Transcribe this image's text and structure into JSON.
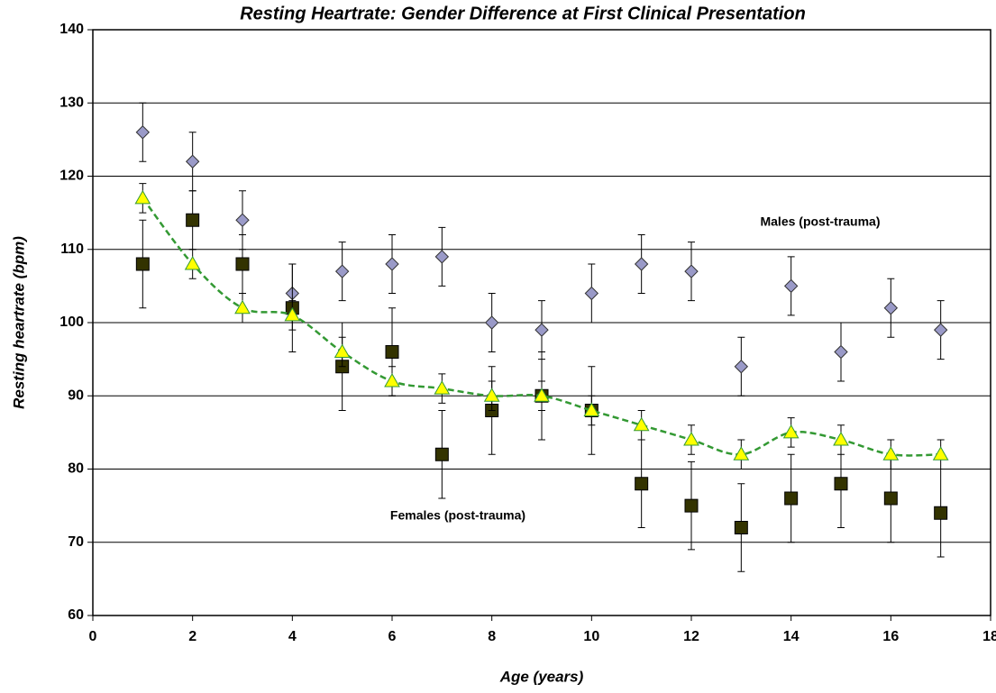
{
  "chart_data": {
    "type": "scatter",
    "title": "Resting Heartrate: Gender Difference at First Clinical Presentation",
    "x_label": "Age (years)",
    "y_label": "Resting heartrate (bpm)",
    "annotations": [
      "Males (post-trauma)",
      "Females (post-trauma)"
    ],
    "x": [
      1,
      2,
      3,
      4,
      5,
      6,
      7,
      8,
      9,
      10,
      11,
      12,
      13,
      14,
      15,
      16,
      17
    ],
    "series": [
      {
        "name": "Males (post-trauma)",
        "marker": "diamond",
        "color": "#9a9ac8",
        "values": [
          126,
          122,
          114,
          104,
          107,
          108,
          109,
          100,
          99,
          104,
          108,
          107,
          94,
          105,
          96,
          102,
          99
        ],
        "errors": [
          4,
          4,
          4,
          4,
          4,
          4,
          4,
          4,
          4,
          4,
          4,
          4,
          4,
          4,
          4,
          4,
          4
        ]
      },
      {
        "name": "Females (post-trauma)",
        "marker": "square",
        "color": "#333300",
        "values": [
          108,
          114,
          108,
          102,
          94,
          96,
          82,
          88,
          90,
          88,
          78,
          75,
          72,
          76,
          78,
          76,
          74
        ],
        "errors": [
          6,
          4,
          4,
          6,
          6,
          6,
          6,
          6,
          6,
          6,
          6,
          6,
          6,
          6,
          6,
          6,
          6
        ]
      },
      {
        "marker": "triangle",
        "color": "#ffff00",
        "line_color": "#339933",
        "line": "dashed",
        "values": [
          117,
          108,
          102,
          101,
          96,
          92,
          91,
          90,
          90,
          88,
          86,
          84,
          82,
          85,
          84,
          82,
          82
        ],
        "errors": [
          2,
          2,
          2,
          2,
          2,
          2,
          2,
          2,
          2,
          2,
          2,
          2,
          2,
          2,
          2,
          2,
          2
        ]
      }
    ],
    "xlim": [
      0,
      18
    ],
    "xticks": [
      0,
      2,
      4,
      6,
      8,
      10,
      12,
      14,
      16,
      18
    ],
    "ylim": [
      60,
      140
    ],
    "yticks": [
      60,
      70,
      80,
      90,
      100,
      110,
      120,
      130,
      140
    ],
    "grid": true
  }
}
